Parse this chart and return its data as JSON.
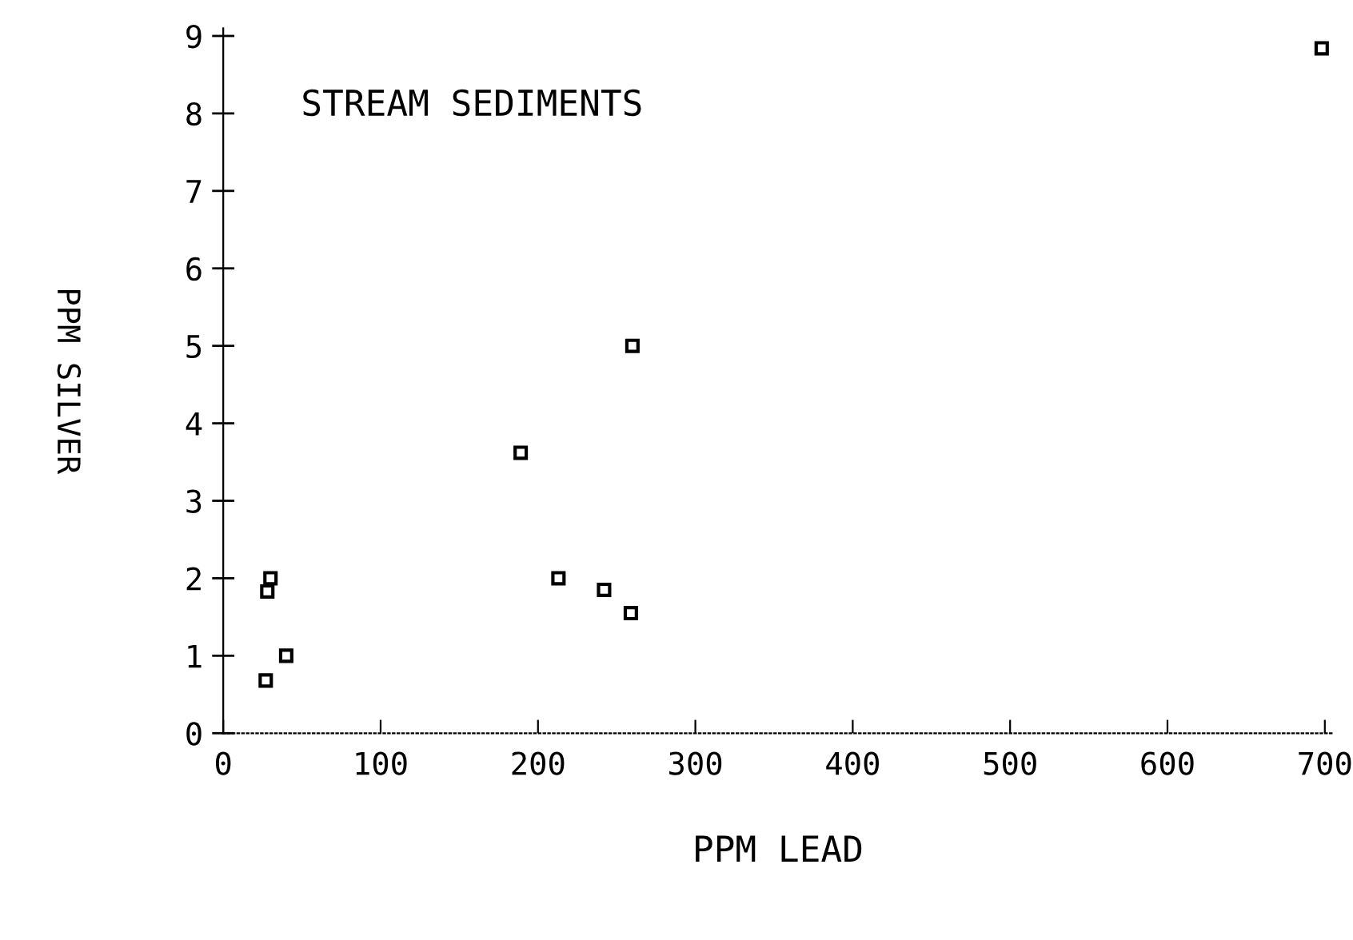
{
  "chart_data": {
    "type": "scatter",
    "title": "STREAM SEDIMENTS",
    "xlabel": "PPM LEAD",
    "ylabel": "PPM SILVER",
    "x": [
      30,
      28,
      40,
      27,
      189,
      213,
      242,
      259,
      260,
      698
    ],
    "values": [
      2.0,
      1.83,
      1.0,
      0.68,
      3.62,
      2.0,
      1.85,
      1.55,
      5.0,
      8.84
    ],
    "color": "#000000",
    "marker": "square",
    "xlim": [
      0,
      705
    ],
    "ylim": [
      0,
      9.1
    ],
    "xticks": [
      0,
      100,
      200,
      300,
      400,
      500,
      600,
      700
    ],
    "yticks": [
      0,
      1,
      2,
      3,
      4,
      5,
      6,
      7,
      8,
      9
    ],
    "grid": false,
    "legend": false
  }
}
